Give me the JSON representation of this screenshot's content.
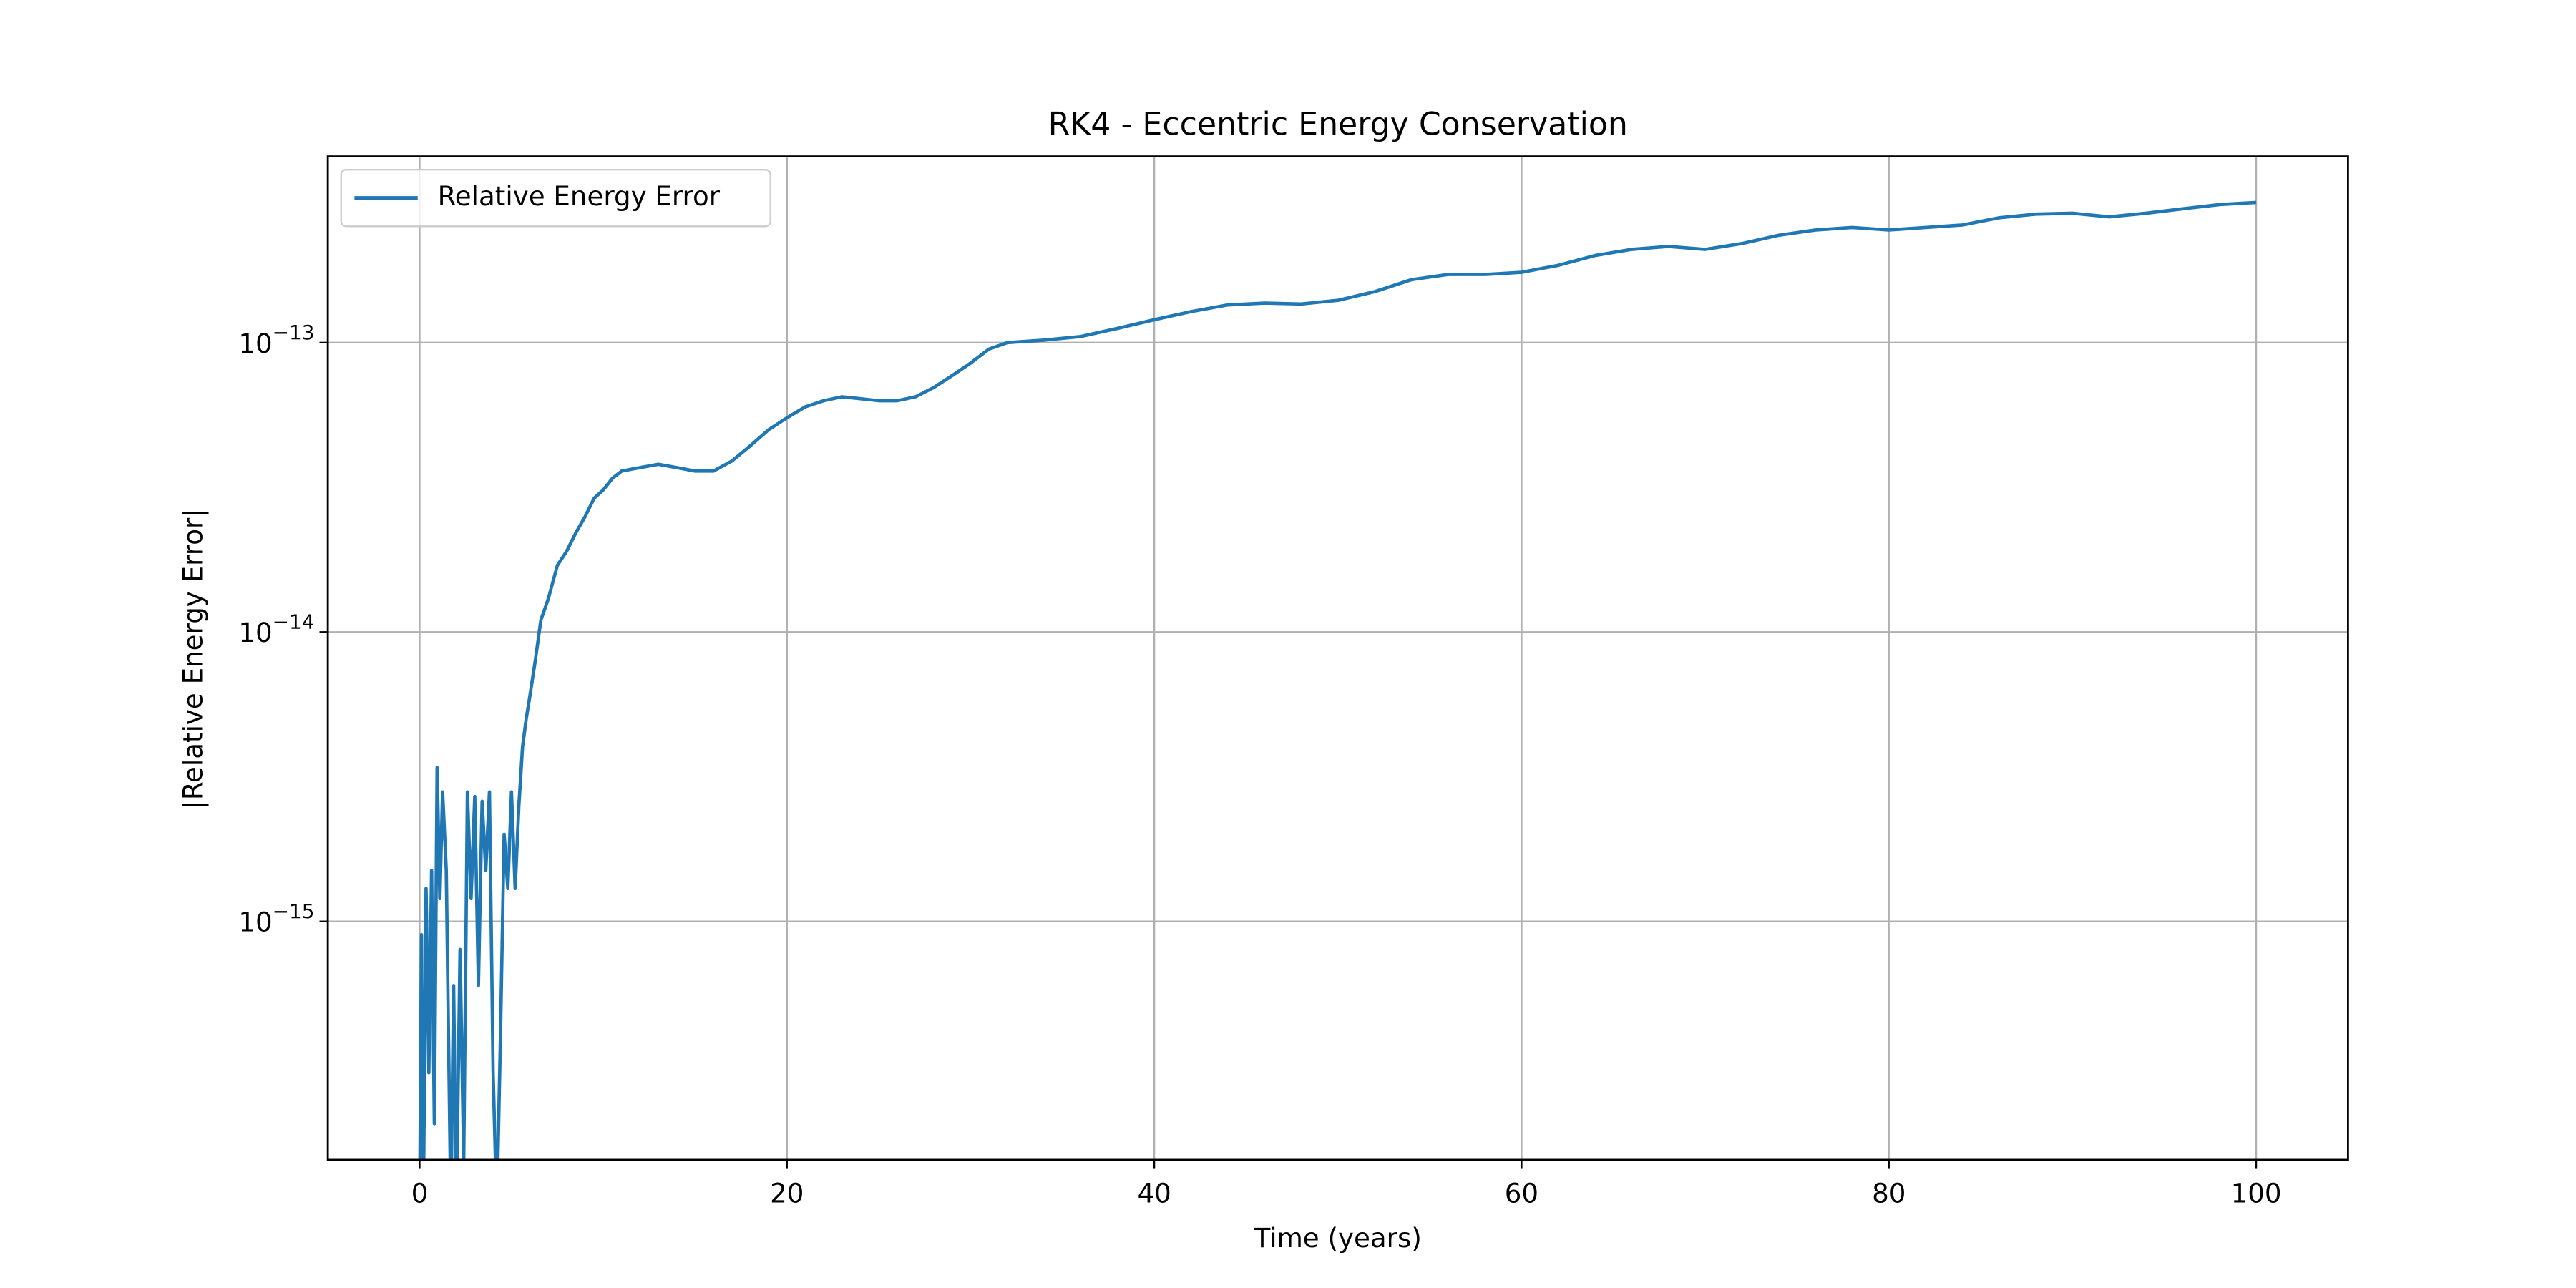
{
  "chart_data": {
    "type": "line",
    "title": "RK4 - Eccentric Energy Conservation",
    "xlabel": "Time (years)",
    "ylabel": "|Relative Energy Error|",
    "yscale": "log",
    "grid": true,
    "legend": "upper left",
    "xlim": [
      -5,
      105
    ],
    "xticks": [
      0,
      20,
      40,
      60,
      80,
      100
    ],
    "ylim": [
      1.5e-16,
      4.4e-13
    ],
    "yticks": [
      {
        "value": 1e-15,
        "label": "10−15"
      },
      {
        "value": 1e-14,
        "label": "10−14"
      },
      {
        "value": 1e-13,
        "label": "10−13"
      }
    ],
    "x": [
      0,
      0.1,
      0.2,
      0.35,
      0.5,
      0.65,
      0.8,
      0.95,
      1.1,
      1.25,
      1.45,
      1.7,
      1.85,
      2.0,
      2.2,
      2.4,
      2.6,
      2.8,
      3.0,
      3.2,
      3.4,
      3.6,
      3.8,
      4.0,
      4.2,
      4.4,
      4.6,
      4.8,
      5.0,
      5.2,
      5.4,
      5.6,
      5.8,
      6.0,
      6.3,
      6.6,
      7.0,
      7.5,
      8,
      8.5,
      9,
      9.5,
      10,
      10.5,
      11,
      12,
      13,
      14,
      15,
      16,
      17,
      18,
      19,
      20,
      21,
      22,
      23,
      24,
      25,
      26,
      27,
      28,
      29,
      30,
      31,
      32,
      34,
      36,
      38,
      40,
      42,
      44,
      46,
      48,
      50,
      52,
      54,
      56,
      58,
      60,
      62,
      64,
      66,
      68,
      70,
      72,
      74,
      76,
      78,
      80,
      82,
      84,
      86,
      88,
      90,
      92,
      94,
      96,
      98,
      100
    ],
    "series": [
      {
        "name": "Relative Energy Error",
        "color": "#1f77b4",
        "values": [
          1e-16,
          9e-16,
          1e-16,
          1.3e-15,
          3e-16,
          1.5e-15,
          2e-16,
          3.4e-15,
          1.2e-15,
          2.8e-15,
          1.5e-15,
          1e-16,
          6e-16,
          1e-16,
          8e-16,
          1.5e-16,
          2.8e-15,
          1.2e-15,
          2.7e-15,
          6e-16,
          2.6e-15,
          1.5e-15,
          2.8e-15,
          3e-16,
          1e-16,
          4e-16,
          2e-15,
          1.3e-15,
          2.8e-15,
          1.3e-15,
          2.5e-15,
          4e-15,
          5e-15,
          6e-15,
          8e-15,
          1.1e-14,
          1.3e-14,
          1.7e-14,
          1.9e-14,
          2.2e-14,
          2.5e-14,
          2.9e-14,
          3.1e-14,
          3.4e-14,
          3.6e-14,
          3.7e-14,
          3.8e-14,
          3.7e-14,
          3.6e-14,
          3.6e-14,
          3.9e-14,
          4.4e-14,
          5e-14,
          5.5e-14,
          6e-14,
          6.3e-14,
          6.5e-14,
          6.4e-14,
          6.3e-14,
          6.3e-14,
          6.5e-14,
          7e-14,
          7.7e-14,
          8.5e-14,
          9.5e-14,
          1e-13,
          1.02e-13,
          1.05e-13,
          1.12e-13,
          1.2e-13,
          1.28e-13,
          1.35e-13,
          1.37e-13,
          1.36e-13,
          1.4e-13,
          1.5e-13,
          1.65e-13,
          1.72e-13,
          1.72e-13,
          1.75e-13,
          1.85e-13,
          2e-13,
          2.1e-13,
          2.15e-13,
          2.1e-13,
          2.2e-13,
          2.35e-13,
          2.45e-13,
          2.5e-13,
          2.45e-13,
          2.5e-13,
          2.55e-13,
          2.7e-13,
          2.78e-13,
          2.8e-13,
          2.72e-13,
          2.8e-13,
          2.9e-13,
          3e-13,
          3.05e-13
        ]
      }
    ]
  }
}
